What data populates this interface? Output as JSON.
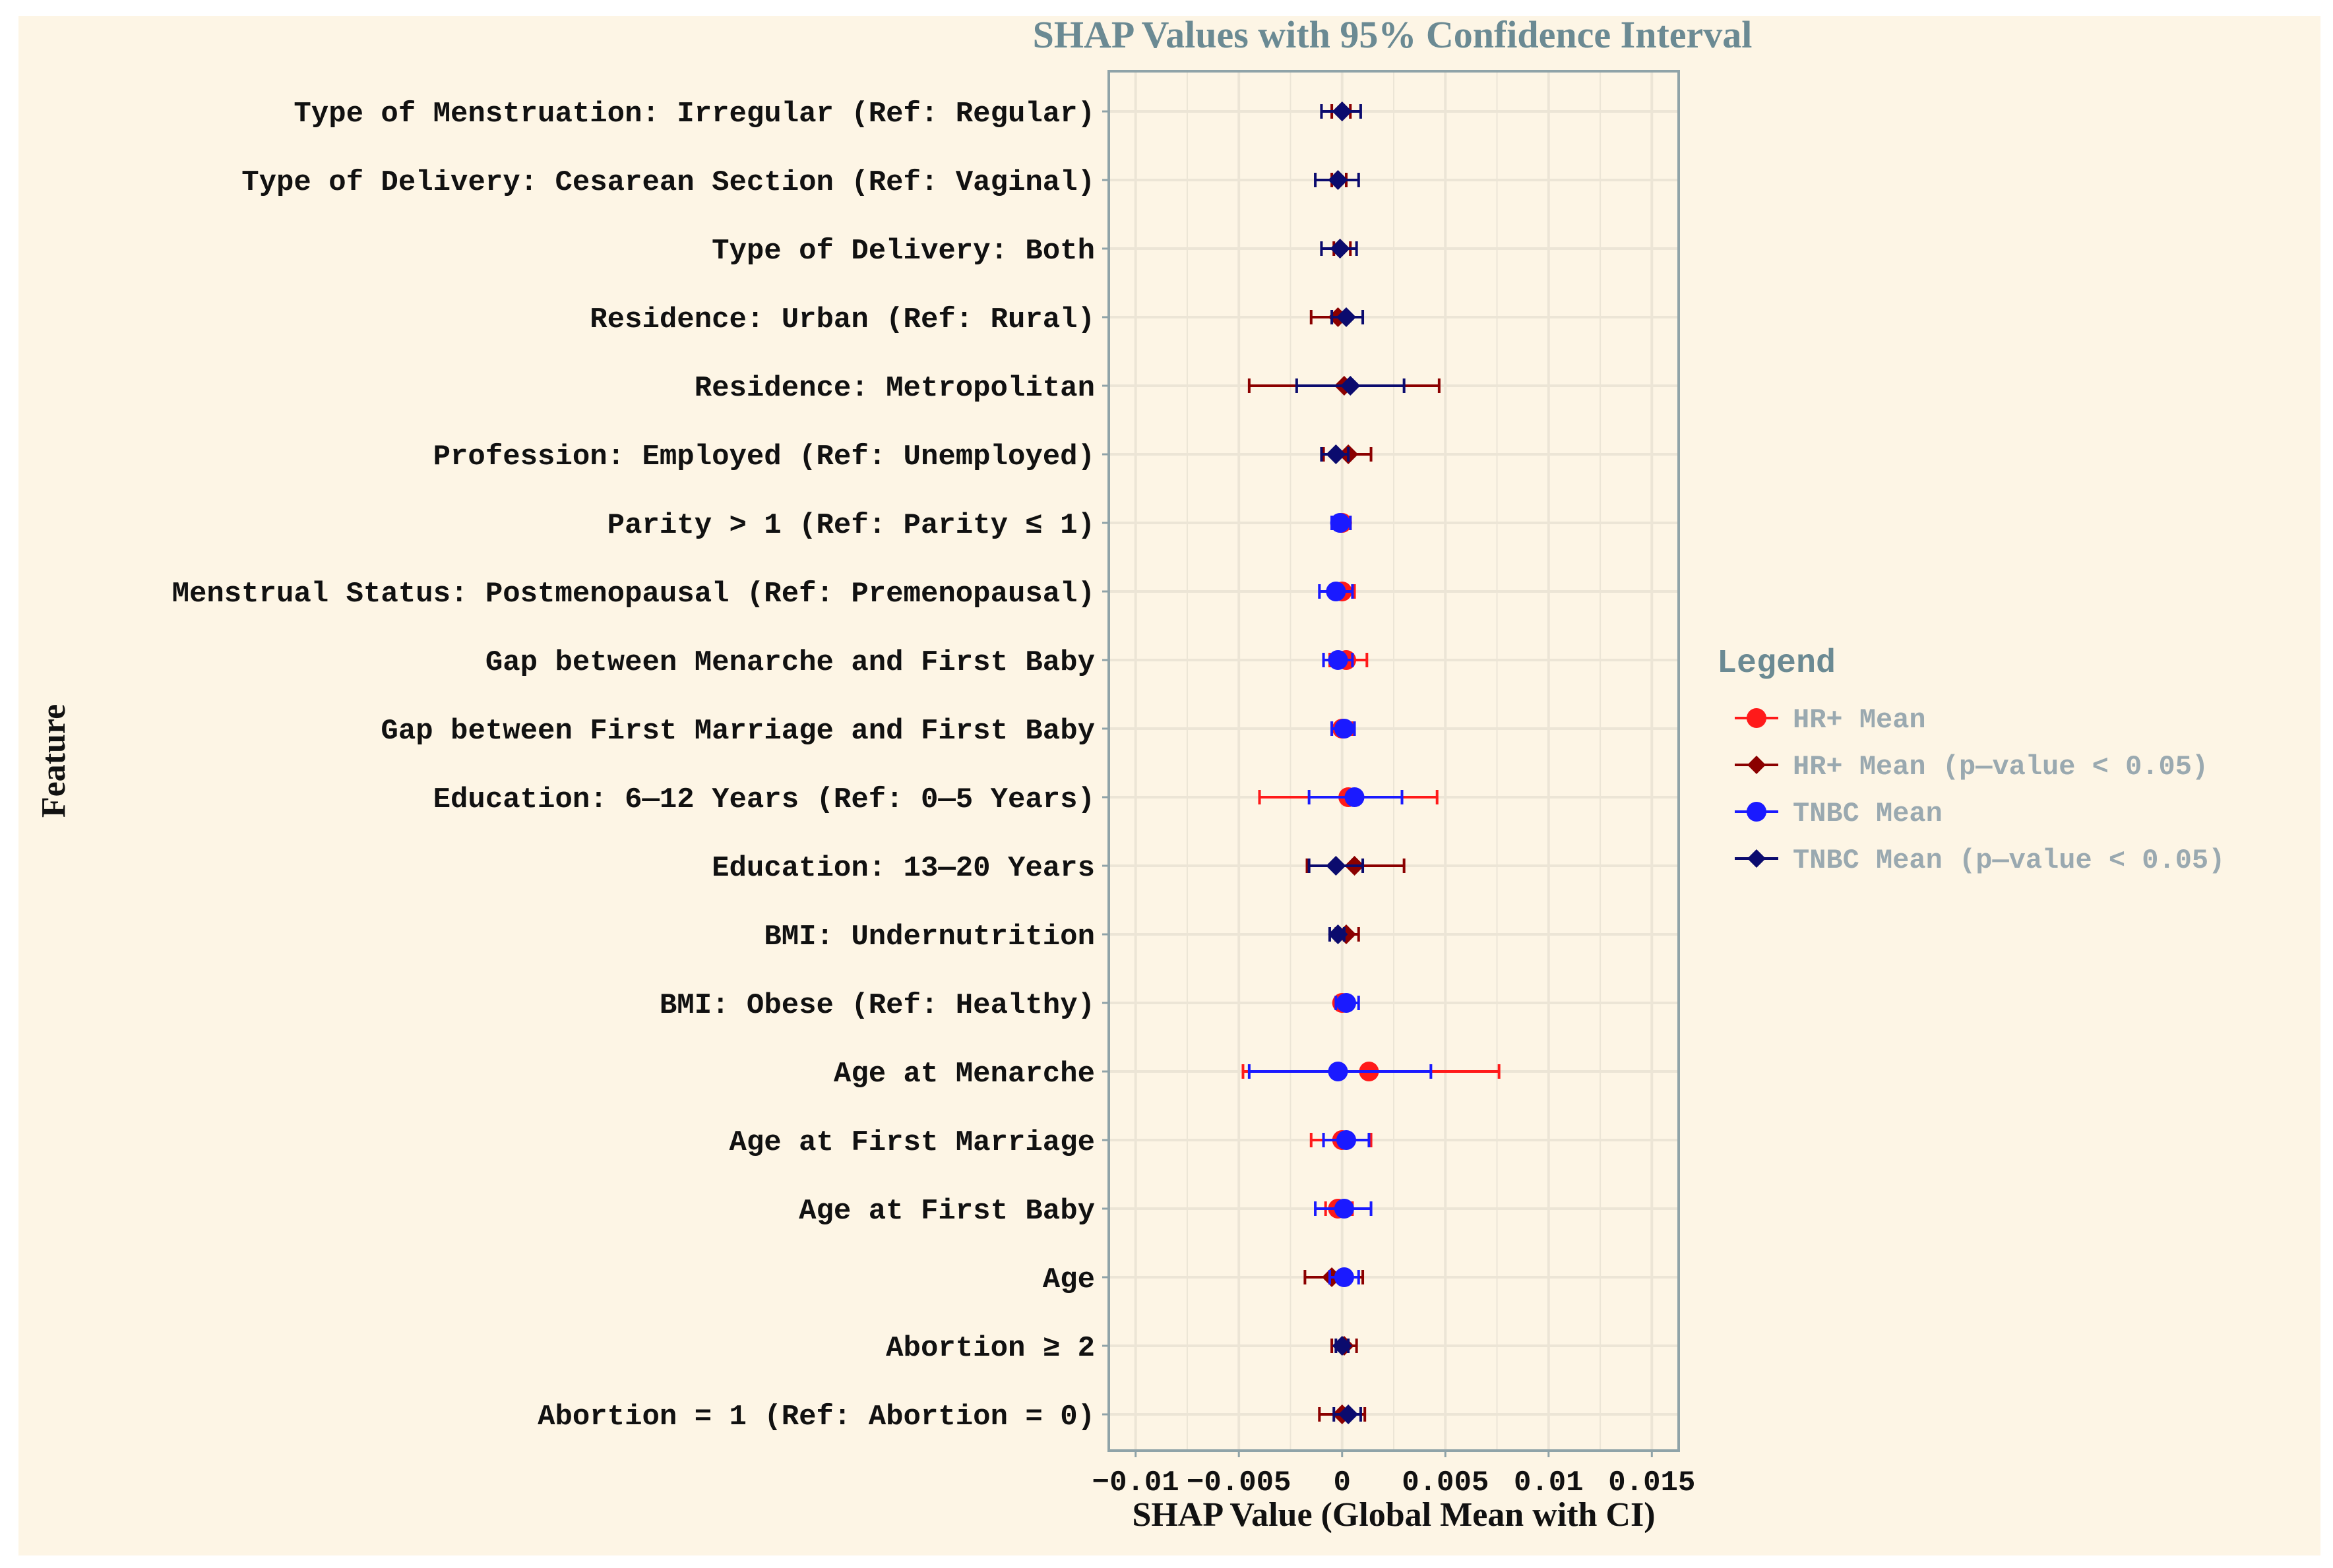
{
  "colors": {
    "background": "#fdf5e5",
    "panel": "#fdf5e5",
    "grid": "#ece5d6",
    "panel_border": "#8fa3a8",
    "hr_mean": "#ff1a1a",
    "hr_sig": "#8b0000",
    "tnbc_mean": "#1a1aff",
    "tnbc_sig": "#0b0b6e",
    "title": "#6b8a93"
  },
  "chart_data": {
    "type": "forest",
    "title": "SHAP Values with 95% Confidence Interval",
    "xlabel": "SHAP Value (Global Mean with CI)",
    "ylabel": "Feature",
    "xlim": [
      -0.0113,
      0.0163
    ],
    "xticks": [
      -0.01,
      -0.005,
      0,
      0.005,
      0.01,
      0.015
    ],
    "xtick_labels": [
      "−0.01",
      "−0.005",
      "0",
      "0.005",
      "0.01",
      "0.015"
    ],
    "grid": true,
    "legend": {
      "title": "Legend",
      "position": "right",
      "entries": [
        {
          "key": "hr",
          "label": "HR+ Mean",
          "marker": "circle"
        },
        {
          "key": "hrs",
          "label": "HR+ Mean (p—value < 0.05)",
          "marker": "diamond"
        },
        {
          "key": "tn",
          "label": "TNBC Mean",
          "marker": "circle"
        },
        {
          "key": "tns",
          "label": "TNBC Mean (p—value < 0.05)",
          "marker": "diamond"
        }
      ]
    },
    "features": [
      {
        "label": "Type of Menstruation: Irregular (Ref: Regular)",
        "hr": {
          "mean": 0.0,
          "lo": -0.0005,
          "hi": 0.0004,
          "sig": true
        },
        "tnbc": {
          "mean": 0.0,
          "lo": -0.001,
          "hi": 0.0009,
          "sig": true
        }
      },
      {
        "label": "Type of Delivery: Cesarean Section (Ref: Vaginal)",
        "hr": {
          "mean": -0.0002,
          "lo": -0.0005,
          "hi": 0.0002,
          "sig": true
        },
        "tnbc": {
          "mean": -0.0002,
          "lo": -0.0013,
          "hi": 0.0008,
          "sig": true
        }
      },
      {
        "label": "Type of Delivery: Both",
        "hr": {
          "mean": -0.0001,
          "lo": -0.0004,
          "hi": 0.0004,
          "sig": true
        },
        "tnbc": {
          "mean": -0.0001,
          "lo": -0.001,
          "hi": 0.0007,
          "sig": true
        }
      },
      {
        "label": "Residence: Urban (Ref: Rural)",
        "hr": {
          "mean": -0.0002,
          "lo": -0.0015,
          "hi": 0.0002,
          "sig": true
        },
        "tnbc": {
          "mean": 0.0002,
          "lo": -0.0005,
          "hi": 0.001,
          "sig": true
        }
      },
      {
        "label": "Residence: Metropolitan",
        "hr": {
          "mean": 0.0001,
          "lo": -0.0045,
          "hi": 0.0047,
          "sig": true
        },
        "tnbc": {
          "mean": 0.0004,
          "lo": -0.0022,
          "hi": 0.003,
          "sig": true
        }
      },
      {
        "label": "Profession: Employed (Ref: Unemployed)",
        "hr": {
          "mean": 0.0003,
          "lo": -0.0009,
          "hi": 0.0014,
          "sig": true
        },
        "tnbc": {
          "mean": -0.0003,
          "lo": -0.001,
          "hi": 0.0003,
          "sig": true
        }
      },
      {
        "label": "Parity > 1 (Ref: Parity ≤ 1)",
        "hr": {
          "mean": 0.0,
          "lo": -0.0005,
          "hi": 0.0004,
          "sig": false
        },
        "tnbc": {
          "mean": -0.0001,
          "lo": -0.0005,
          "hi": 0.0004,
          "sig": false
        }
      },
      {
        "label": "Menstrual Status: Postmenopausal (Ref: Premenopausal)",
        "hr": {
          "mean": 0.0,
          "lo": -0.0005,
          "hi": 0.0006,
          "sig": false
        },
        "tnbc": {
          "mean": -0.0003,
          "lo": -0.0011,
          "hi": 0.0005,
          "sig": false
        }
      },
      {
        "label": "Gap between Menarche and First Baby",
        "hr": {
          "mean": 0.0002,
          "lo": -0.0006,
          "hi": 0.0012,
          "sig": false
        },
        "tnbc": {
          "mean": -0.0002,
          "lo": -0.0009,
          "hi": 0.0005,
          "sig": false
        }
      },
      {
        "label": "Gap between First Marriage and First Baby",
        "hr": {
          "mean": 0.0,
          "lo": -0.0005,
          "hi": 0.0005,
          "sig": false
        },
        "tnbc": {
          "mean": 0.0001,
          "lo": -0.0005,
          "hi": 0.0006,
          "sig": false
        }
      },
      {
        "label": "Education: 6—12 Years (Ref: 0—5 Years)",
        "hr": {
          "mean": 0.0003,
          "lo": -0.004,
          "hi": 0.0046,
          "sig": false
        },
        "tnbc": {
          "mean": 0.0006,
          "lo": -0.0016,
          "hi": 0.0029,
          "sig": false
        }
      },
      {
        "label": "Education: 13—20 Years",
        "hr": {
          "mean": 0.0006,
          "lo": -0.0017,
          "hi": 0.003,
          "sig": true
        },
        "tnbc": {
          "mean": -0.0003,
          "lo": -0.0016,
          "hi": 0.001,
          "sig": true
        }
      },
      {
        "label": "BMI: Undernutrition",
        "hr": {
          "mean": 0.0002,
          "lo": -0.0003,
          "hi": 0.0008,
          "sig": true
        },
        "tnbc": {
          "mean": -0.0002,
          "lo": -0.0006,
          "hi": 0.0001,
          "sig": true
        }
      },
      {
        "label": "BMI: Obese (Ref: Healthy)",
        "hr": {
          "mean": 0.0,
          "lo": -0.0003,
          "hi": 0.0004,
          "sig": false
        },
        "tnbc": {
          "mean": 0.0002,
          "lo": -0.0003,
          "hi": 0.0008,
          "sig": false
        }
      },
      {
        "label": "Age at Menarche",
        "hr": {
          "mean": 0.0013,
          "lo": -0.0048,
          "hi": 0.0076,
          "sig": false
        },
        "tnbc": {
          "mean": -0.0002,
          "lo": -0.0045,
          "hi": 0.0043,
          "sig": false
        }
      },
      {
        "label": "Age at First Marriage",
        "hr": {
          "mean": 0.0,
          "lo": -0.0015,
          "hi": 0.0014,
          "sig": false
        },
        "tnbc": {
          "mean": 0.0002,
          "lo": -0.0009,
          "hi": 0.0013,
          "sig": false
        }
      },
      {
        "label": "Age at First Baby",
        "hr": {
          "mean": -0.0002,
          "lo": -0.0008,
          "hi": 0.0005,
          "sig": false
        },
        "tnbc": {
          "mean": 0.0001,
          "lo": -0.0013,
          "hi": 0.0014,
          "sig": false
        }
      },
      {
        "label": "Age",
        "hr": {
          "mean": -0.0005,
          "lo": -0.0018,
          "hi": 0.001,
          "sig": true
        },
        "tnbc": {
          "mean": 0.0001,
          "lo": -0.0006,
          "hi": 0.0008,
          "sig": false
        }
      },
      {
        "label": "Abortion ≥ 2",
        "hr": {
          "mean": 0.0001,
          "lo": -0.0005,
          "hi": 0.0007,
          "sig": true
        },
        "tnbc": {
          "mean": 0.0,
          "lo": -0.0003,
          "hi": 0.0003,
          "sig": true
        }
      },
      {
        "label": "Abortion = 1 (Ref: Abortion = 0)",
        "hr": {
          "mean": 0.0,
          "lo": -0.0011,
          "hi": 0.0011,
          "sig": true
        },
        "tnbc": {
          "mean": 0.0003,
          "lo": -0.0004,
          "hi": 0.0009,
          "sig": true
        }
      }
    ]
  }
}
